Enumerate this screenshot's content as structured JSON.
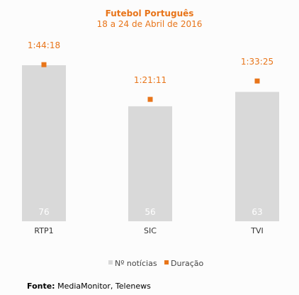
{
  "source": {
    "label": "Fonte:",
    "text": "MediaMonitor, Telenews"
  },
  "chart_data": {
    "type": "bar",
    "title": "Futebol Português",
    "subtitle": "18 a 24 de Abril de 2016",
    "categories": [
      "RTP1",
      "SIC",
      "TVI"
    ],
    "series": [
      {
        "name": "Nº notícias",
        "type": "bar",
        "values": [
          76,
          56,
          63
        ],
        "color": "#d9d9d9"
      },
      {
        "name": "Duração",
        "type": "point",
        "values": [
          "1:44:18",
          "1:21:11",
          "1:33:25"
        ],
        "seconds": [
          6258,
          4871,
          5605
        ],
        "color": "#e8751a"
      }
    ],
    "ylim": [
      0,
      80
    ],
    "y2lim": [
      0,
      7000
    ],
    "grid": false,
    "legend": "bottom",
    "colors": {
      "title": "#e8751a",
      "bar_label": "#ffffff",
      "category": "#333333"
    }
  }
}
